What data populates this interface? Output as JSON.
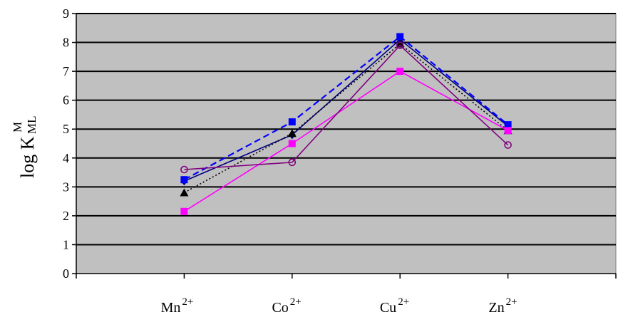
{
  "chart_data": {
    "type": "line",
    "ylabel": {
      "main": "log K",
      "sup": "M",
      "sub": "ML"
    },
    "ylim": [
      0,
      9
    ],
    "yticks": [
      "0",
      "1",
      "2",
      "3",
      "4",
      "5",
      "6",
      "7",
      "8",
      "9"
    ],
    "categories": [
      {
        "base": "Mn",
        "sup": "2+"
      },
      {
        "base": "Co",
        "sup": "2+"
      },
      {
        "base": "Cu",
        "sup": "2+"
      },
      {
        "base": "Zn",
        "sup": "2+"
      }
    ],
    "grid": true,
    "plot_background": "#c0c0c0",
    "series": [
      {
        "values": [
          3.2,
          4.8,
          8.1,
          5.1
        ],
        "color": "#000080",
        "dash": "solid",
        "marker": "diamond"
      },
      {
        "values": [
          3.25,
          5.25,
          8.2,
          5.15
        ],
        "color": "#0000ff",
        "dash": "dashed",
        "marker": "square"
      },
      {
        "values": [
          2.8,
          4.85,
          7.95,
          4.95
        ],
        "color": "#000000",
        "dash": "dotted",
        "marker": "triangle"
      },
      {
        "values": [
          2.15,
          4.5,
          7.0,
          4.95
        ],
        "color": "#ff00ff",
        "dash": "solid",
        "marker": "square"
      },
      {
        "values": [
          3.6,
          3.85,
          7.9,
          4.45
        ],
        "color": "#800080",
        "dash": "solid",
        "marker": "circle"
      }
    ]
  }
}
